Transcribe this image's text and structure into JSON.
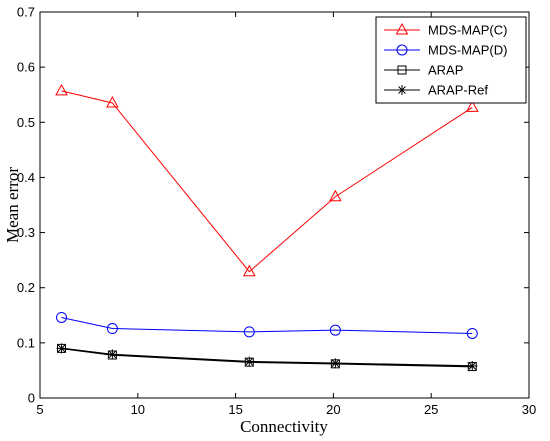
{
  "chart_data": {
    "type": "line",
    "xlabel": "Connectivity",
    "ylabel": "Mean error",
    "xlim": [
      5,
      30
    ],
    "ylim": [
      0,
      0.7
    ],
    "x_ticks": [
      "5",
      "10",
      "15",
      "20",
      "25",
      "30"
    ],
    "y_ticks": [
      "0",
      "0.1",
      "0.2",
      "0.3",
      "0.4",
      "0.5",
      "0.6",
      "0.7"
    ],
    "grid": false,
    "legend_position": "top-right",
    "series": [
      {
        "name": "MDS-MAP(C)",
        "color": "#ff0000",
        "marker": "triangle",
        "x": [
          6.1,
          8.7,
          15.7,
          20.1,
          27.1
        ],
        "y": [
          0.557,
          0.535,
          0.229,
          0.365,
          0.527
        ]
      },
      {
        "name": "MDS-MAP(D)",
        "color": "#0000ff",
        "marker": "circle",
        "x": [
          6.1,
          8.7,
          15.7,
          20.1,
          27.1
        ],
        "y": [
          0.146,
          0.126,
          0.12,
          0.123,
          0.117
        ]
      },
      {
        "name": "ARAP",
        "color": "#000000",
        "marker": "square",
        "x": [
          6.1,
          8.7,
          15.7,
          20.1,
          27.1
        ],
        "y": [
          0.09,
          0.078,
          0.065,
          0.062,
          0.057
        ]
      },
      {
        "name": "ARAP-Ref",
        "color": "#000000",
        "marker": "star",
        "x": [
          6.1,
          8.7,
          15.7,
          20.1,
          27.1
        ],
        "y": [
          0.09,
          0.079,
          0.066,
          0.063,
          0.058
        ]
      }
    ]
  }
}
